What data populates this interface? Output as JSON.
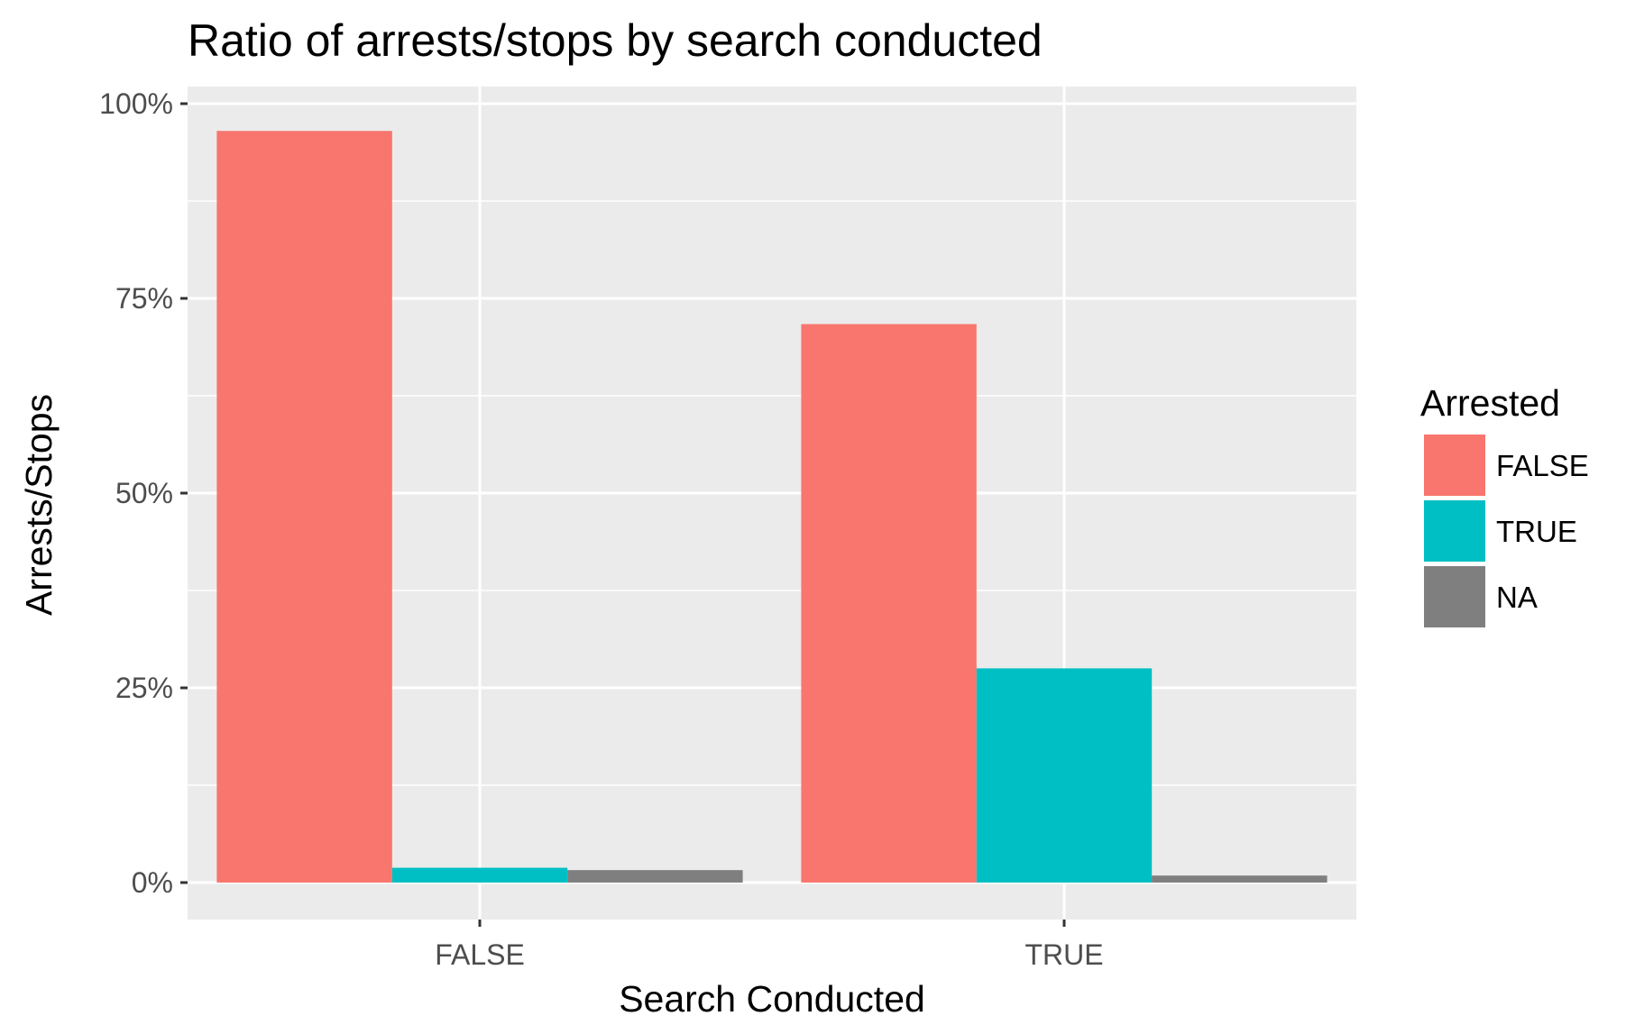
{
  "chart_data": {
    "type": "bar",
    "title": "Ratio of arrests/stops by search conducted",
    "xlabel": "Search Conducted",
    "ylabel": "Arrests/Stops",
    "categories": [
      "FALSE",
      "TRUE"
    ],
    "series": [
      {
        "name": "FALSE",
        "values": [
          0.965,
          0.717
        ]
      },
      {
        "name": "TRUE",
        "values": [
          0.019,
          0.275
        ]
      },
      {
        "name": "NA",
        "values": [
          0.016,
          0.009
        ]
      }
    ],
    "ylim": [
      0,
      1
    ],
    "yticks": [
      0,
      0.25,
      0.5,
      0.75,
      1.0
    ],
    "ytick_labels": [
      "0%",
      "25%",
      "50%",
      "75%",
      "100%"
    ],
    "grid": true,
    "legend": {
      "title": "Arrested",
      "placement": "right",
      "items": [
        "FALSE",
        "TRUE",
        "NA"
      ]
    }
  },
  "colors": {
    "panel_background": "#ebebeb",
    "grid_line": "#ffffff",
    "series": [
      "#f8766d",
      "#00bfc4",
      "#7f7f7f"
    ]
  }
}
